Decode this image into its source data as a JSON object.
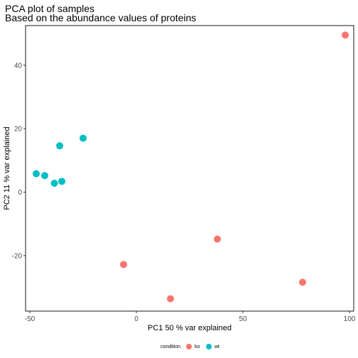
{
  "chart_data": {
    "type": "scatter",
    "title": "PCA plot of samples",
    "subtitle": "Based on the abundance values of proteins",
    "xlabel": "PC1 50 % var explained",
    "ylabel": "PC2 11 % var explained",
    "xlim": [
      -52,
      102
    ],
    "ylim": [
      -37.5,
      52.5
    ],
    "xticks": [
      -50,
      0,
      50,
      100
    ],
    "xtick_labels": [
      "-50",
      "0",
      "50",
      "100"
    ],
    "yticks": [
      -20,
      0,
      20,
      40
    ],
    "ytick_labels": [
      "-20",
      "0",
      "20",
      "40"
    ],
    "grid": false,
    "legend": {
      "title": "condition",
      "position": "bottom",
      "entries": [
        "ko",
        "wt"
      ]
    },
    "colors": {
      "ko": "#F8766D",
      "wt": "#00BFC4"
    },
    "series": [
      {
        "name": "ko",
        "points": [
          {
            "x": 98,
            "y": 49.5
          },
          {
            "x": 38,
            "y": -14.8
          },
          {
            "x": -6,
            "y": -22.8
          },
          {
            "x": 16,
            "y": -33.6
          },
          {
            "x": 78,
            "y": -28.4
          }
        ]
      },
      {
        "name": "wt",
        "points": [
          {
            "x": -25,
            "y": 17
          },
          {
            "x": -36,
            "y": 14.6
          },
          {
            "x": -47,
            "y": 5.8
          },
          {
            "x": -43,
            "y": 5.2
          },
          {
            "x": -35,
            "y": 3.4
          },
          {
            "x": -38.5,
            "y": 2.8
          }
        ]
      }
    ]
  }
}
